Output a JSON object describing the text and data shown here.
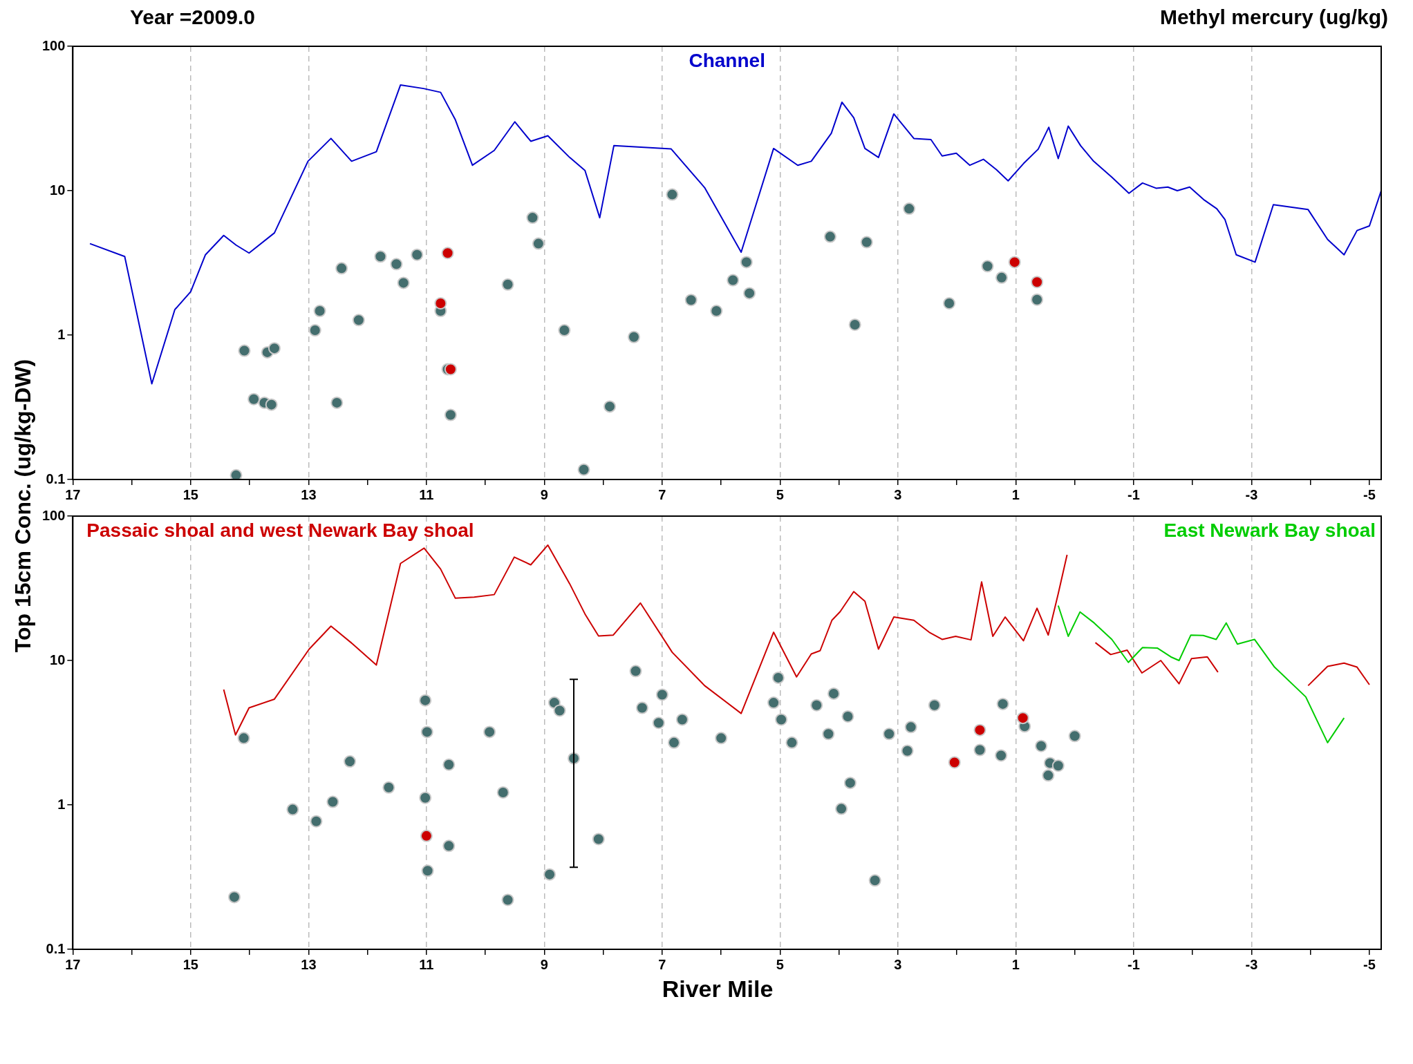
{
  "chart_data": [
    {
      "type": "line",
      "title": "Year =2009.0",
      "subtitle": "Methyl mercury (ug/kg)",
      "ylabel": "Top 15cm Conc. (ug/kg-DW)",
      "log": "y",
      "grid": "x",
      "xlim": [
        17,
        -5.2
      ],
      "xticks": [
        17,
        {
          "value": 16,
          "label": null
        },
        15,
        {
          "value": 14,
          "label": null
        },
        13,
        {
          "value": 12,
          "label": null
        },
        11,
        {
          "value": 10,
          "label": null
        },
        9,
        {
          "value": 8,
          "label": null
        },
        7,
        {
          "value": 6,
          "label": null
        },
        5,
        {
          "value": 4,
          "label": null
        },
        3,
        {
          "value": 2,
          "label": null
        },
        1,
        {
          "value": 0,
          "label": null
        },
        -1,
        {
          "value": -2,
          "label": null
        },
        -3,
        {
          "value": -4,
          "label": null
        },
        -5
      ],
      "ylim": [
        0.1,
        100
      ],
      "yticks": [
        0.1,
        1,
        10,
        100
      ],
      "series": [
        {
          "name": "Channel",
          "type": "line",
          "marker": "none",
          "color": "#0000cc",
          "x": [
            16.71,
            16.12,
            15.66,
            15.27,
            15.0,
            14.75,
            14.44,
            14.23,
            14.01,
            13.58,
            13.01,
            12.62,
            12.27,
            11.85,
            11.44,
            11.05,
            10.76,
            10.51,
            10.22,
            9.85,
            9.5,
            9.23,
            8.94,
            8.57,
            8.31,
            8.06,
            7.82,
            6.85,
            6.28,
            5.66,
            5.11,
            4.7,
            4.47,
            4.13,
            3.95,
            3.75,
            3.56,
            3.33,
            3.07,
            2.73,
            2.44,
            2.25,
            2.01,
            1.78,
            1.55,
            1.33,
            1.13,
            0.87,
            0.62,
            0.44,
            0.28,
            0.11,
            -0.1,
            -0.32,
            -0.63,
            -0.92,
            -1.15,
            -1.38,
            -1.58,
            -1.74,
            -1.95,
            -2.2,
            -2.41,
            -2.55,
            -2.74,
            -3.06,
            -3.37,
            -3.96,
            -4.29,
            -4.57,
            -4.79,
            -5.0,
            -5.2
          ],
          "values": [
            4.3,
            3.5,
            0.46,
            1.5,
            2.0,
            3.6,
            4.9,
            4.2,
            3.7,
            5.1,
            16,
            23,
            16,
            18.6,
            54,
            51,
            48,
            31,
            15,
            19,
            30,
            22,
            24,
            17,
            13.8,
            6.5,
            20.5,
            19.5,
            10.5,
            3.75,
            19.6,
            15,
            16,
            25,
            41,
            32,
            19.6,
            17,
            34,
            23,
            22.6,
            17.4,
            18.2,
            15,
            16.5,
            14,
            11.7,
            15.4,
            19.4,
            27.5,
            16.7,
            28,
            20.5,
            16,
            12.4,
            9.6,
            11.3,
            10.4,
            10.6,
            10,
            10.6,
            8.6,
            7.5,
            6.3,
            3.6,
            3.2,
            8.0,
            7.4,
            4.6,
            3.6,
            5.3,
            5.7,
            10
          ]
        },
        {
          "type": "scatter",
          "marker": "circle",
          "color": "#446e6e",
          "x": [
            9.2,
            6.83,
            2.81,
            4.15,
            3.53,
            9.1,
            11.78,
            11.51,
            11.16,
            12.44,
            11.39,
            9.62,
            5.57,
            5.8,
            5.52,
            1.48,
            1.24,
            6.51,
            6.08,
            2.13,
            0.64,
            10.76,
            12.81,
            12.15,
            12.89,
            3.73,
            8.66,
            7.48,
            14.09,
            13.7,
            13.58,
            10.64,
            13.93,
            13.75,
            13.63,
            12.52,
            10.59,
            7.89,
            14.23,
            8.33
          ],
          "values": [
            6.5,
            9.4,
            7.5,
            4.8,
            4.4,
            4.3,
            3.5,
            3.1,
            3.6,
            2.9,
            2.3,
            2.24,
            3.2,
            2.4,
            1.95,
            3.0,
            2.5,
            1.75,
            1.47,
            1.66,
            1.76,
            1.47,
            1.47,
            1.27,
            1.08,
            1.18,
            1.08,
            0.97,
            0.78,
            0.76,
            0.81,
            0.58,
            0.36,
            0.34,
            0.33,
            0.34,
            0.28,
            0.32,
            0.107,
            0.117
          ]
        },
        {
          "type": "scatter",
          "marker": "circle",
          "color": "#cc0000",
          "x": [
            10.64,
            10.76,
            10.59,
            1.02,
            0.64
          ],
          "values": [
            3.7,
            1.66,
            0.58,
            3.2,
            2.33
          ]
        }
      ]
    },
    {
      "type": "line",
      "xlabel": "River Mile",
      "log": "y",
      "grid": "x",
      "xlim": [
        17,
        -5.2
      ],
      "xticks": [
        17,
        {
          "value": 16,
          "label": null
        },
        15,
        {
          "value": 14,
          "label": null
        },
        13,
        {
          "value": 12,
          "label": null
        },
        11,
        {
          "value": 10,
          "label": null
        },
        9,
        {
          "value": 8,
          "label": null
        },
        7,
        {
          "value": 6,
          "label": null
        },
        5,
        {
          "value": 4,
          "label": null
        },
        3,
        {
          "value": 2,
          "label": null
        },
        1,
        {
          "value": 0,
          "label": null
        },
        -1,
        {
          "value": -2,
          "label": null
        },
        -3,
        {
          "value": -4,
          "label": null
        },
        -5
      ],
      "ylim": [
        0.1,
        100
      ],
      "yticks": [
        0.1,
        1,
        10,
        100
      ],
      "series": [
        {
          "name": "Passaic shoal and west Newark Bay shoal",
          "type": "line",
          "marker": "none",
          "color": "#cc0000",
          "x": [
            14.44,
            14.24,
            14.01,
            13.58,
            12.99,
            12.62,
            12.25,
            11.85,
            11.44,
            11.04,
            10.76,
            10.51,
            10.19,
            9.85,
            9.51,
            9.23,
            8.94,
            8.57,
            8.31,
            8.08,
            7.83,
            7.37,
            6.83,
            6.28,
            5.66,
            5.11,
            4.72,
            4.47,
            4.32,
            4.12,
            3.98,
            3.75,
            3.56,
            3.33,
            3.07,
            2.73,
            2.47,
            2.25,
            2.02,
            1.76,
            1.58,
            1.39,
            1.18,
            0.87,
            0.64,
            0.45,
            0.28,
            0.13,
            -0.1,
            -0.35,
            -0.61,
            -0.89,
            -1.14,
            -1.46,
            -1.77,
            -1.98,
            -2.25,
            -2.43,
            -3.2,
            -3.96,
            -4.29,
            -4.57,
            -4.79,
            -5.0
          ],
          "values": [
            6.3,
            3.05,
            4.7,
            5.4,
            12,
            17.3,
            13,
            9.3,
            47,
            60,
            43,
            27,
            27.5,
            28.6,
            52,
            46,
            63,
            34,
            21,
            14.8,
            15,
            25,
            11.4,
            6.7,
            4.3,
            15.7,
            7.7,
            11.1,
            11.7,
            19,
            21.8,
            30,
            25.7,
            12,
            20,
            19,
            15.7,
            14,
            14.7,
            13.9,
            35,
            14.7,
            20,
            13.7,
            23,
            15,
            29,
            54,
            null,
            13.3,
            11,
            11.8,
            8.2,
            10,
            6.9,
            10.3,
            10.6,
            8.3,
            null,
            6.7,
            9.1,
            9.6,
            9.0,
            6.8
          ]
        },
        {
          "name": "East Newark Bay shoal",
          "type": "line",
          "marker": "none",
          "color": "#00cc00",
          "x": [
            0.28,
            0.11,
            -0.09,
            -0.33,
            -0.63,
            -0.91,
            -1.15,
            -1.4,
            -1.63,
            -1.77,
            -1.97,
            -2.18,
            -2.4,
            -2.57,
            -2.76,
            -3.05,
            -3.39,
            -3.92,
            -4.29,
            -4.57
          ],
          "values": [
            24,
            14.7,
            21.7,
            18.2,
            14,
            9.7,
            12.3,
            12.2,
            10.6,
            10,
            15,
            14.9,
            14,
            18.2,
            13,
            14,
            9,
            5.6,
            2.7,
            4.0
          ]
        },
        {
          "type": "scatter",
          "marker": "circle",
          "color": "#446e6e",
          "x": [
            7.45,
            5.03,
            4.09,
            7.0,
            11.02,
            8.83,
            7.34,
            8.74,
            5.11,
            4.38,
            2.38,
            1.22,
            3.85,
            4.98,
            7.06,
            6.66,
            2.78,
            0.85,
            3.15,
            4.18,
            9.93,
            10.99,
            14.1,
            6.0,
            6.8,
            4.8,
            0.0,
            0.57,
            1.61,
            2.84,
            1.25,
            0.42,
            0.28,
            0.45,
            12.3,
            10.62,
            3.81,
            11.64,
            9.7,
            11.02,
            12.59,
            13.27,
            12.87,
            3.96,
            8.08,
            10.62,
            10.98,
            8.91,
            3.39,
            14.26,
            9.62
          ],
          "values": [
            8.45,
            7.6,
            5.9,
            5.8,
            5.3,
            5.1,
            4.7,
            4.5,
            5.1,
            4.9,
            4.9,
            5.0,
            4.1,
            3.9,
            3.7,
            3.9,
            3.46,
            3.5,
            3.1,
            3.1,
            3.2,
            3.2,
            2.9,
            2.9,
            2.7,
            2.7,
            3.0,
            2.56,
            2.4,
            2.37,
            2.2,
            1.95,
            1.87,
            1.6,
            2.0,
            1.9,
            1.42,
            1.32,
            1.22,
            1.12,
            1.05,
            0.93,
            0.77,
            0.94,
            0.58,
            0.52,
            0.35,
            0.33,
            0.3,
            0.23,
            0.22
          ]
        },
        {
          "type": "scatter",
          "marker": "circle",
          "color": "#446e6e",
          "x": [
            8.5
          ],
          "values": [
            2.1
          ],
          "errors": [
            [
              0.37,
              7.4
            ]
          ]
        },
        {
          "type": "scatter",
          "marker": "circle",
          "color": "#cc0000",
          "x": [
            1.61,
            0.88,
            2.04,
            11.0
          ],
          "values": [
            3.3,
            4.0,
            1.97,
            0.61
          ]
        }
      ]
    }
  ]
}
